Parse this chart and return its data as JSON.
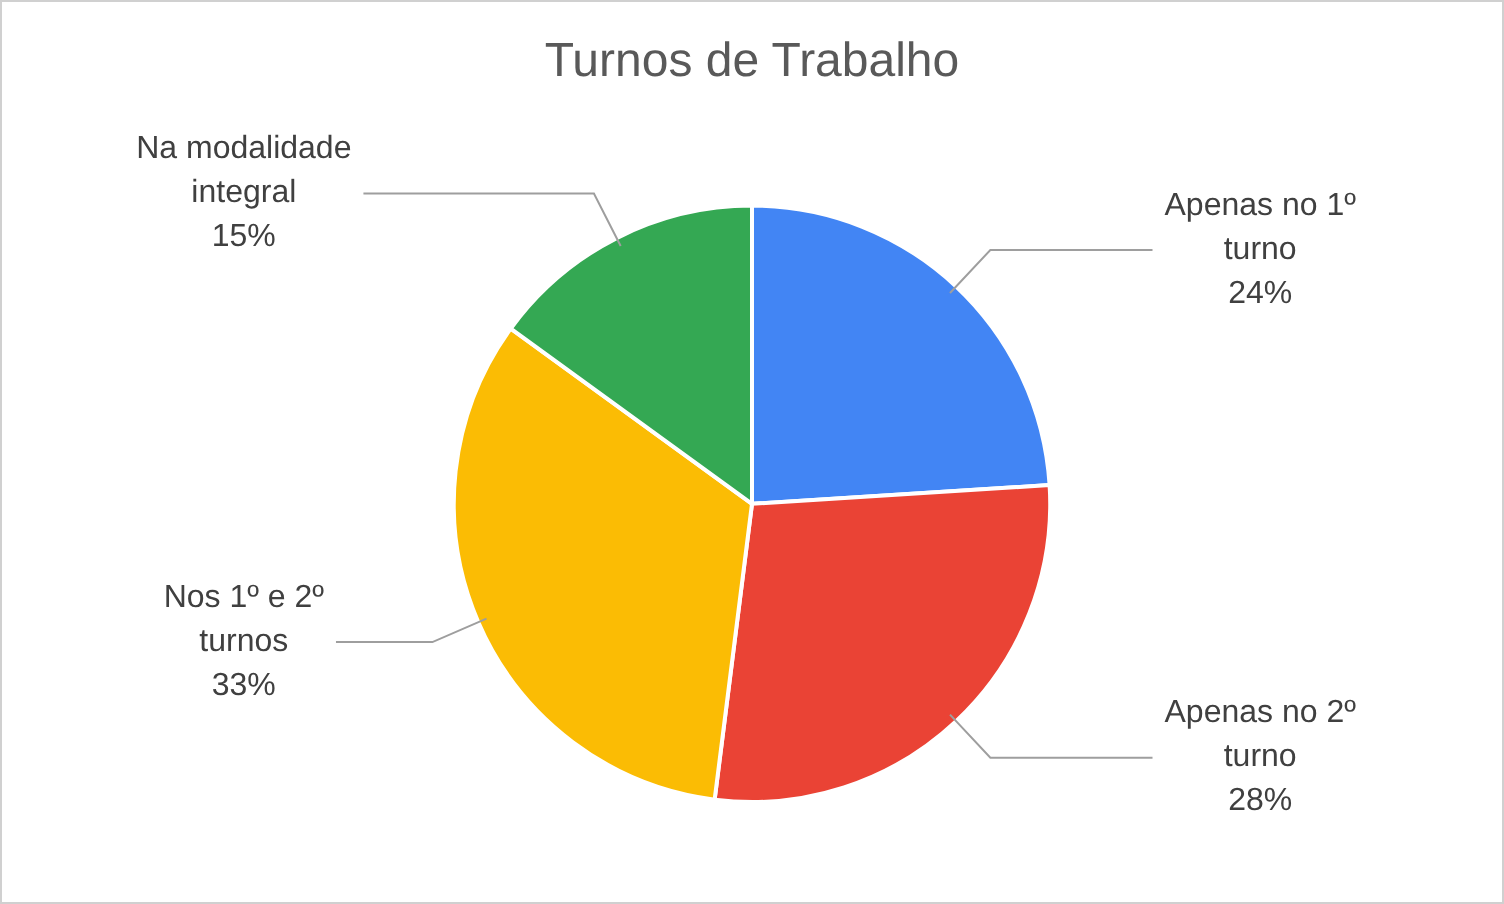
{
  "chart_data": {
    "type": "pie",
    "title": "Turnos de Trabalho",
    "categories": [
      "Apenas no 1º turno",
      "Apenas no 2º turno",
      "Nos 1º e 2º turnos",
      "Na modalidade integral"
    ],
    "values": [
      24,
      28,
      33,
      15
    ],
    "colors": [
      "#4285f4",
      "#ea4335",
      "#fbbc04",
      "#34a853"
    ],
    "value_labels": [
      "24%",
      "28%",
      "33%",
      "15%"
    ],
    "legend": false
  }
}
